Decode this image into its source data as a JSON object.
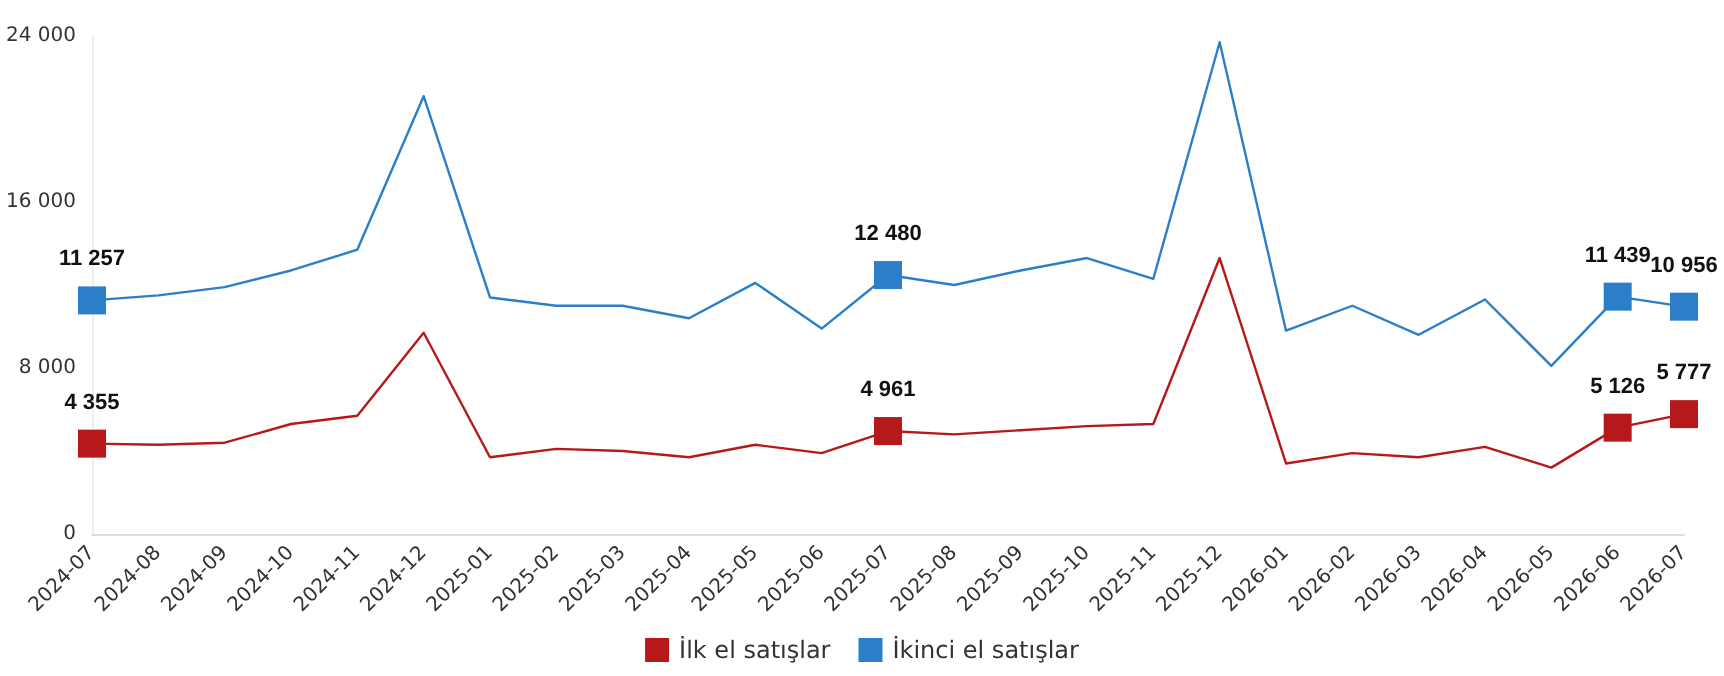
{
  "chart_data": {
    "type": "line",
    "categories": [
      "2024-07",
      "2024-08",
      "2024-09",
      "2024-10",
      "2024-11",
      "2024-12",
      "2025-01",
      "2025-02",
      "2025-03",
      "2025-04",
      "2025-05",
      "2025-06",
      "2025-07",
      "2025-08",
      "2025-09",
      "2025-10",
      "2025-11",
      "2025-12",
      "2026-01",
      "2026-02",
      "2026-03",
      "2026-04",
      "2026-05",
      "2026-06",
      "2026-07"
    ],
    "series": [
      {
        "name": "İlk el satışlar",
        "color": "#b5191c",
        "values": [
          4355,
          4300,
          4400,
          5300,
          5700,
          9700,
          3700,
          4100,
          4000,
          3700,
          4300,
          3900,
          4961,
          4800,
          5000,
          5200,
          5300,
          13300,
          3400,
          3900,
          3700,
          4200,
          3200,
          5126,
          5777
        ],
        "value_labels": [
          "4 355",
          null,
          null,
          null,
          null,
          null,
          null,
          null,
          null,
          null,
          null,
          null,
          "4 961",
          null,
          null,
          null,
          null,
          null,
          null,
          null,
          null,
          null,
          null,
          "5 126",
          "5 777"
        ]
      },
      {
        "name": "İkinci el satışlar",
        "color": "#2a7fc8",
        "values": [
          11257,
          11500,
          11900,
          12700,
          13700,
          21100,
          11400,
          11000,
          11000,
          10400,
          12100,
          9900,
          12480,
          12000,
          12700,
          13300,
          12300,
          23700,
          9800,
          11000,
          9600,
          11300,
          8100,
          11439,
          10956
        ],
        "value_labels": [
          "11 257",
          null,
          null,
          null,
          null,
          null,
          null,
          null,
          null,
          null,
          null,
          null,
          "12 480",
          null,
          null,
          null,
          null,
          null,
          null,
          null,
          null,
          null,
          null,
          "11 439",
          "10 956"
        ]
      }
    ],
    "ylim": [
      0,
      24000
    ],
    "yticks": [
      0,
      {
        "value": 8000,
        "label": "8 000"
      },
      {
        "value": 16000,
        "label": "16 000"
      },
      {
        "value": 24000,
        "label": "24 000"
      }
    ],
    "grid": false,
    "legend": "bottom",
    "line_style": "solid"
  }
}
